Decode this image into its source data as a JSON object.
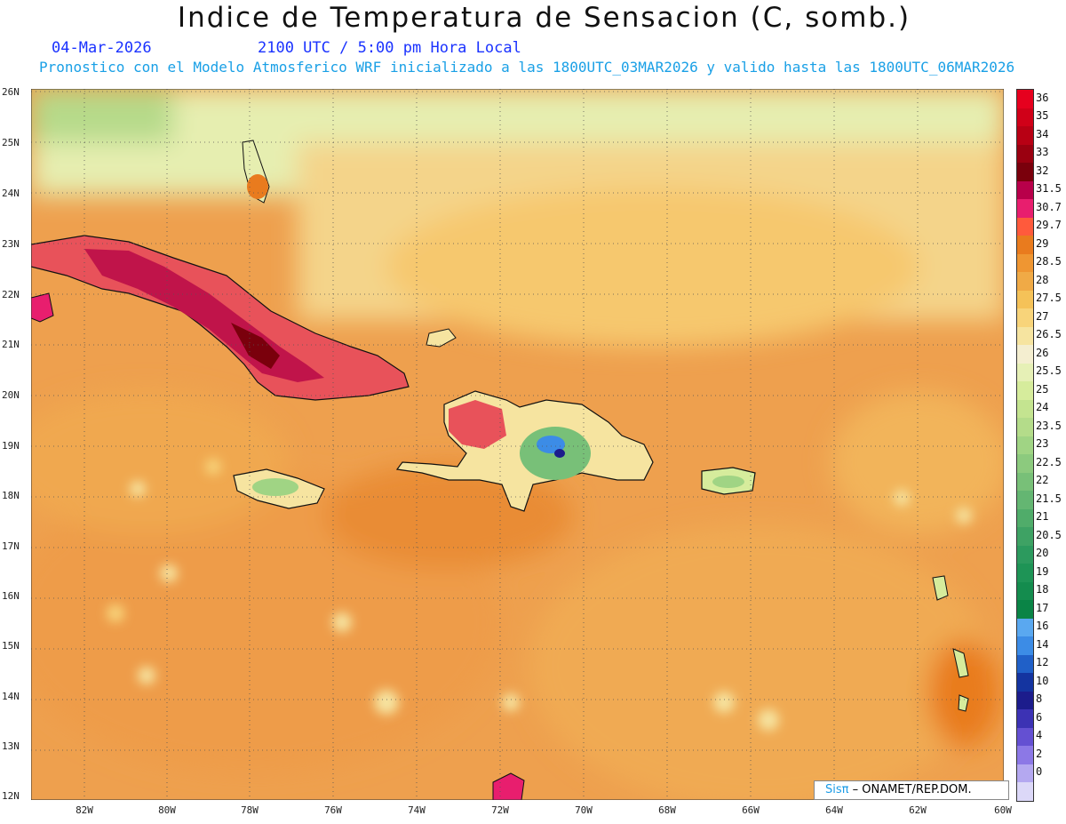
{
  "header": {
    "title": "Indice de Temperatura de Sensacion (C, somb.)",
    "date": "04-Mar-2026",
    "time": "2100 UTC / 5:00 pm Hora Local",
    "model_info": "Pronostico con el Modelo Atmosferico WRF inicializado a las 1800UTC_03MAR2026 y valido hasta las  1800UTC_06MAR2026"
  },
  "axes": {
    "lat_labels": [
      "26N",
      "25N",
      "24N",
      "23N",
      "22N",
      "21N",
      "20N",
      "19N",
      "18N",
      "17N",
      "16N",
      "15N",
      "14N",
      "13N",
      "12N"
    ],
    "lon_labels": [
      "82W",
      "80W",
      "78W",
      "76W",
      "74W",
      "72W",
      "70W",
      "68W",
      "66W",
      "64W",
      "62W",
      "60W"
    ]
  },
  "legend": {
    "levels": [
      "36",
      "35",
      "34",
      "33",
      "32",
      "31.5",
      "30.7",
      "29.7",
      "29",
      "28.5",
      "28",
      "27.5",
      "27",
      "26.5",
      "26",
      "25.5",
      "25",
      "24",
      "23.5",
      "23",
      "22.5",
      "22",
      "21.5",
      "21",
      "20.5",
      "20",
      "19",
      "18",
      "17",
      "16",
      "14",
      "12",
      "10",
      "8",
      "6",
      "4",
      "2",
      "0"
    ],
    "colors": [
      "#e6001e",
      "#d00018",
      "#b80014",
      "#9a0010",
      "#7a000c",
      "#b8004a",
      "#e81e6e",
      "#ff5a3c",
      "#e97b1e",
      "#ef9632",
      "#f0aa46",
      "#f5c258",
      "#f8d47a",
      "#f6e4a0",
      "#f4eed0",
      "#e6f0b6",
      "#d6ec9c",
      "#c4e490",
      "#b4dc8a",
      "#a0d484",
      "#8cca7e",
      "#78c078",
      "#64b672",
      "#50ac6a",
      "#3ea264",
      "#2c9a5e",
      "#1e9456",
      "#148c4e",
      "#0a8446",
      "#5aa8f0",
      "#3c8ce6",
      "#2060c8",
      "#1434a0",
      "#1c1c8c",
      "#3c32b4",
      "#6450d2",
      "#8c78e6",
      "#b4a8f0",
      "#dcd8f8"
    ]
  },
  "credit": {
    "logo": "Sisπ",
    "text": "– ONAMET/REP.DOM."
  }
}
